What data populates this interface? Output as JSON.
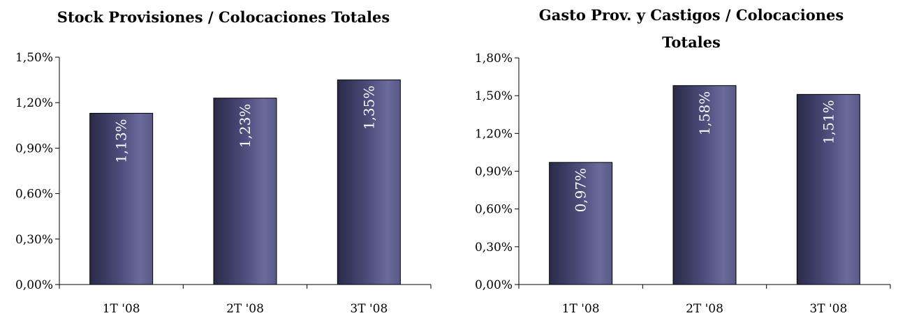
{
  "chart_data": [
    {
      "type": "bar",
      "title_lines": [
        "Stock Provisiones / Colocaciones Totales"
      ],
      "categories": [
        "1T '08",
        "2T '08",
        "3T '08"
      ],
      "values": [
        1.13,
        1.23,
        1.35
      ],
      "value_labels": [
        "1,13%",
        "1,23%",
        "1,35%"
      ],
      "ylim": [
        0,
        1.5
      ],
      "yticks": [
        0,
        0.3,
        0.6,
        0.9,
        1.2,
        1.5
      ],
      "ytick_labels": [
        "0,00%",
        "0,30%",
        "0,60%",
        "0,90%",
        "1,20%",
        "1,50%"
      ],
      "grid": false,
      "bar_color": "#4f4f7f"
    },
    {
      "type": "bar",
      "title_lines": [
        "Gasto Prov. y Castigos / Colocaciones",
        "Totales"
      ],
      "categories": [
        "1T '08",
        "2T '08",
        "3T '08"
      ],
      "values": [
        0.97,
        1.58,
        1.51
      ],
      "value_labels": [
        "0,97%",
        "1,58%",
        "1,51%"
      ],
      "ylim": [
        0,
        1.8
      ],
      "yticks": [
        0,
        0.3,
        0.6,
        0.9,
        1.2,
        1.5,
        1.8
      ],
      "ytick_labels": [
        "0,00%",
        "0,30%",
        "0,60%",
        "0,90%",
        "1,20%",
        "1,50%",
        "1,80%"
      ],
      "grid": false,
      "bar_color": "#4f4f7f"
    }
  ]
}
